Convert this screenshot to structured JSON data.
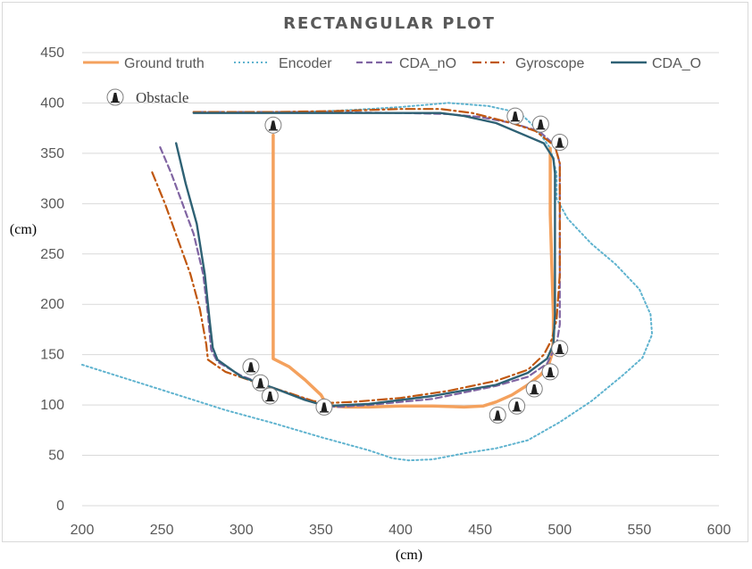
{
  "chart_data": {
    "type": "line",
    "title": "RECTANGULAR PLOT",
    "xlabel": "(cm)",
    "ylabel": "(cm)",
    "xlim": [
      200,
      600
    ],
    "ylim": [
      0,
      450
    ],
    "xticks": [
      "200",
      "250",
      "300",
      "350",
      "400",
      "450",
      "500",
      "550",
      "600"
    ],
    "yticks": [
      "0",
      "50",
      "100",
      "150",
      "200",
      "250",
      "300",
      "350",
      "400",
      "450"
    ],
    "grid": "horizontal",
    "legend_position": "top",
    "colors": {
      "ground_truth": "#f4a15d",
      "encoder": "#5fb3cf",
      "cda_no": "#8064a2",
      "gyroscope": "#c0570f",
      "cda_o": "#2e6174",
      "grid": "#d9d9d9",
      "text": "#595959"
    },
    "series": [
      {
        "name": "Ground truth",
        "style": "solid-thick",
        "points": [
          [
            320,
            368
          ],
          [
            320,
            300
          ],
          [
            320,
            220
          ],
          [
            320,
            146
          ],
          [
            330,
            138
          ],
          [
            340,
            125
          ],
          [
            350,
            110
          ],
          [
            353,
            102
          ],
          [
            358,
            99
          ],
          [
            365,
            98
          ],
          [
            380,
            98
          ],
          [
            400,
            99
          ],
          [
            420,
            99
          ],
          [
            440,
            98
          ],
          [
            452,
            99
          ],
          [
            460,
            103
          ],
          [
            470,
            110
          ],
          [
            480,
            120
          ],
          [
            488,
            130
          ],
          [
            493,
            140
          ],
          [
            495,
            150
          ],
          [
            496,
            165
          ],
          [
            496,
            190
          ],
          [
            495,
            240
          ],
          [
            494,
            290
          ],
          [
            494,
            340
          ],
          [
            494,
            355
          ]
        ]
      },
      {
        "name": "Encoder",
        "style": "dotted",
        "points": [
          [
            200,
            140
          ],
          [
            230,
            125
          ],
          [
            260,
            110
          ],
          [
            290,
            95
          ],
          [
            320,
            82
          ],
          [
            350,
            68
          ],
          [
            380,
            55
          ],
          [
            395,
            47
          ],
          [
            405,
            45
          ],
          [
            420,
            46
          ],
          [
            440,
            52
          ],
          [
            460,
            57
          ],
          [
            480,
            65
          ],
          [
            500,
            83
          ],
          [
            520,
            104
          ],
          [
            540,
            130
          ],
          [
            552,
            147
          ],
          [
            558,
            170
          ],
          [
            557,
            190
          ],
          [
            550,
            215
          ],
          [
            535,
            240
          ],
          [
            520,
            260
          ],
          [
            505,
            285
          ],
          [
            498,
            305
          ],
          [
            498,
            330
          ],
          [
            494,
            355
          ],
          [
            485,
            375
          ],
          [
            475,
            390
          ],
          [
            455,
            397
          ],
          [
            430,
            400
          ],
          [
            400,
            396
          ],
          [
            370,
            393
          ],
          [
            340,
            391
          ]
        ]
      },
      {
        "name": "CDA_nO",
        "style": "dashed",
        "points": [
          [
            249,
            356
          ],
          [
            256,
            330
          ],
          [
            263,
            300
          ],
          [
            270,
            270
          ],
          [
            276,
            230
          ],
          [
            279,
            190
          ],
          [
            281,
            155
          ],
          [
            285,
            143
          ],
          [
            300,
            129
          ],
          [
            320,
            117
          ],
          [
            340,
            106
          ],
          [
            350,
            100
          ],
          [
            360,
            98
          ],
          [
            380,
            100
          ],
          [
            420,
            106
          ],
          [
            460,
            119
          ],
          [
            480,
            128
          ],
          [
            492,
            141
          ],
          [
            498,
            160
          ],
          [
            500,
            180
          ],
          [
            500,
            230
          ],
          [
            500,
            290
          ],
          [
            500,
            340
          ],
          [
            497,
            358
          ],
          [
            487,
            372
          ],
          [
            470,
            380
          ],
          [
            450,
            386
          ],
          [
            430,
            389
          ],
          [
            400,
            390
          ],
          [
            350,
            391
          ],
          [
            300,
            391
          ],
          [
            270,
            391
          ]
        ]
      },
      {
        "name": "Gyroscope",
        "style": "dashdot",
        "points": [
          [
            244,
            331
          ],
          [
            252,
            300
          ],
          [
            260,
            265
          ],
          [
            268,
            230
          ],
          [
            274,
            195
          ],
          [
            278,
            160
          ],
          [
            279,
            145
          ],
          [
            290,
            133
          ],
          [
            310,
            122
          ],
          [
            330,
            112
          ],
          [
            345,
            104
          ],
          [
            354,
            102
          ],
          [
            370,
            103
          ],
          [
            400,
            107
          ],
          [
            430,
            114
          ],
          [
            460,
            124
          ],
          [
            480,
            135
          ],
          [
            490,
            150
          ],
          [
            495,
            165
          ],
          [
            498,
            185
          ],
          [
            500,
            230
          ],
          [
            500,
            290
          ],
          [
            500,
            340
          ],
          [
            497,
            357
          ],
          [
            485,
            372
          ],
          [
            470,
            380
          ],
          [
            445,
            390
          ],
          [
            425,
            394
          ],
          [
            400,
            394
          ],
          [
            360,
            392
          ],
          [
            320,
            391
          ],
          [
            270,
            391
          ]
        ]
      },
      {
        "name": "CDA_O",
        "style": "solid",
        "points": [
          [
            259,
            360
          ],
          [
            265,
            320
          ],
          [
            272,
            280
          ],
          [
            277,
            230
          ],
          [
            280,
            185
          ],
          [
            282,
            157
          ],
          [
            285,
            145
          ],
          [
            300,
            128
          ],
          [
            320,
            117
          ],
          [
            340,
            105
          ],
          [
            353,
            99
          ],
          [
            380,
            101
          ],
          [
            420,
            109
          ],
          [
            460,
            120
          ],
          [
            480,
            132
          ],
          [
            492,
            146
          ],
          [
            496,
            160
          ],
          [
            497,
            190
          ],
          [
            497,
            250
          ],
          [
            497,
            300
          ],
          [
            497,
            330
          ],
          [
            496,
            345
          ],
          [
            490,
            360
          ],
          [
            475,
            370
          ],
          [
            460,
            380
          ],
          [
            440,
            387
          ],
          [
            425,
            390
          ],
          [
            400,
            390
          ],
          [
            350,
            390
          ],
          [
            300,
            390
          ],
          [
            270,
            390
          ]
        ]
      }
    ],
    "obstacle_label": "Obstacle",
    "obstacles": [
      [
        320,
        378
      ],
      [
        472,
        387
      ],
      [
        488,
        379
      ],
      [
        500,
        361
      ],
      [
        306,
        138
      ],
      [
        312,
        122
      ],
      [
        318,
        109
      ],
      [
        352,
        98
      ],
      [
        461,
        90
      ],
      [
        473,
        99
      ],
      [
        484,
        116
      ],
      [
        494,
        133
      ],
      [
        500,
        156
      ]
    ]
  }
}
